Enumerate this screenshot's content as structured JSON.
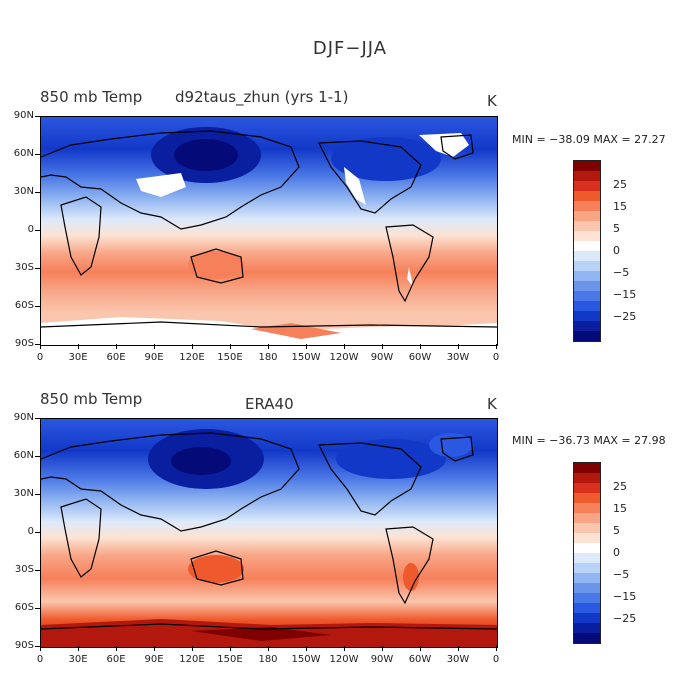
{
  "title": "DJF−JJA",
  "panels": [
    {
      "left_label": "850 mb Temp",
      "center_label": "d92taus_zhun (yrs 1-1)",
      "units": "K",
      "min_max": "MIN = −38.09  MAX =  27.27"
    },
    {
      "left_label": "850 mb Temp",
      "center_label": "ERA40",
      "units": "K",
      "min_max": "MIN = −36.73  MAX =  27.98"
    }
  ],
  "lat_ticks": [
    "90N",
    "60N",
    "30N",
    "0",
    "30S",
    "60S",
    "90S"
  ],
  "lon_ticks": [
    "0",
    "30E",
    "60E",
    "90E",
    "120E",
    "150E",
    "180",
    "150W",
    "120W",
    "90W",
    "60W",
    "30W",
    "0"
  ],
  "colorbar": {
    "labels": [
      "25",
      "15",
      "5",
      "0",
      "−5",
      "−15",
      "−25"
    ],
    "colors": [
      "#7f0000",
      "#b2180e",
      "#d7301f",
      "#ef5a2c",
      "#f6805a",
      "#f8a585",
      "#fbc6ae",
      "#fde3d3",
      "#ffffff",
      "#dce9fb",
      "#b8d2f8",
      "#92b6f1",
      "#6a95ea",
      "#4a78e6",
      "#2b58e0",
      "#1238c8",
      "#0a1ea0",
      "#040a78"
    ]
  },
  "chart_data": {
    "type": "heatmap",
    "title": "DJF−JJA",
    "variable": "850 mb Temp",
    "units": "K",
    "xrange": [
      0,
      360
    ],
    "yrange": [
      -90,
      90
    ],
    "x_ticks": [
      "0",
      "30E",
      "60E",
      "90E",
      "120E",
      "150E",
      "180",
      "150W",
      "120W",
      "90W",
      "60W",
      "30W",
      "0"
    ],
    "y_ticks": [
      "90N",
      "60N",
      "30N",
      "0",
      "30S",
      "60S",
      "90S"
    ],
    "contour_levels": [
      -30,
      -25,
      -20,
      -15,
      -10,
      -5,
      0,
      5,
      10,
      15,
      20,
      25,
      30
    ],
    "fields": [
      {
        "name": "d92taus_zhun (yrs 1-1)",
        "min": -38.09,
        "max": 27.27
      },
      {
        "name": "ERA40",
        "min": -36.73,
        "max": 27.98
      }
    ]
  }
}
